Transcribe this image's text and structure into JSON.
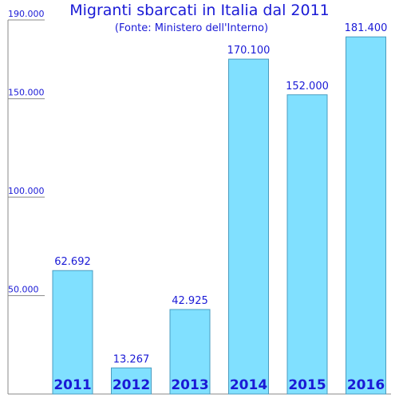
{
  "chart_data": {
    "type": "bar",
    "title": "Migranti sbarcati in Italia dal 2011",
    "subtitle": "(Fonte: Ministero dell'Interno)",
    "categories": [
      "2011",
      "2012",
      "2013",
      "2014",
      "2015",
      "2016"
    ],
    "values": [
      62692,
      13267,
      42925,
      170100,
      152000,
      181400
    ],
    "value_labels": [
      "62.692",
      "13.267",
      "42.925",
      "170.100",
      "152.000",
      "181.400"
    ],
    "y_ticks": [
      {
        "value": 50000,
        "label": "50.000"
      },
      {
        "value": 100000,
        "label": "100.000"
      },
      {
        "value": 150000,
        "label": "150.000"
      },
      {
        "value": 190000,
        "label": "190.000"
      }
    ],
    "ylim": [
      0,
      190000
    ],
    "xlabel": "",
    "ylabel": "",
    "grid": false,
    "legend": "none",
    "colors": {
      "bar_fill": "#80e0ff",
      "bar_stroke": "#4a9cc0",
      "text": "#1a1ad6",
      "category_label": "#1a1ad6",
      "axis": "#888888"
    }
  }
}
